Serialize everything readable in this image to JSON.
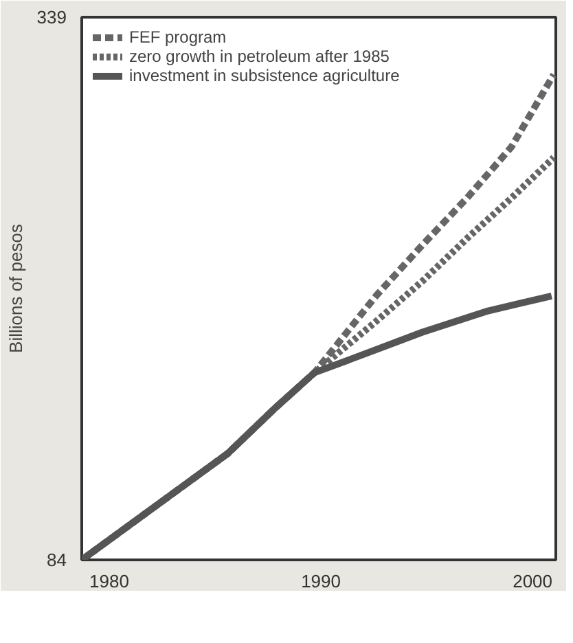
{
  "chart_data": {
    "type": "line",
    "ylabel": "Billions of pesos",
    "xlim": [
      1978.7,
      2001.1
    ],
    "xticks": [
      1980,
      1990,
      2000
    ],
    "ylim": [
      84,
      339
    ],
    "yticks": [
      84,
      339
    ],
    "grid": false,
    "legend": "top left",
    "series": [
      {
        "name": "FEF program",
        "color": "#666666",
        "line_style": "dashed",
        "x": [
          1978.7,
          1985.6,
          1987.8,
          1989.7,
          1992.6,
          1994.8,
          1996.9,
          1999,
          2001
        ],
        "values": [
          84,
          134,
          155,
          172,
          208,
          232,
          254,
          278,
          312
        ]
      },
      {
        "name": "zero growth in petroleum after 1985",
        "color": "#666666",
        "line_style": "dotted",
        "x": [
          1978.7,
          1985.6,
          1987.8,
          1989.7,
          1992.6,
          1994.8,
          1996.9,
          1999,
          2001
        ],
        "values": [
          84,
          134,
          155,
          172,
          196,
          215,
          235,
          254,
          273
        ]
      },
      {
        "name": "investment in subsistence agriculture",
        "color": "#555555",
        "line_style": "solid",
        "x": [
          1978.7,
          1985.6,
          1987.8,
          1989.7,
          1991.6,
          1994.8,
          1997.9,
          2000.9
        ],
        "values": [
          84,
          134,
          155,
          172,
          179,
          191,
          201,
          208
        ]
      }
    ]
  }
}
